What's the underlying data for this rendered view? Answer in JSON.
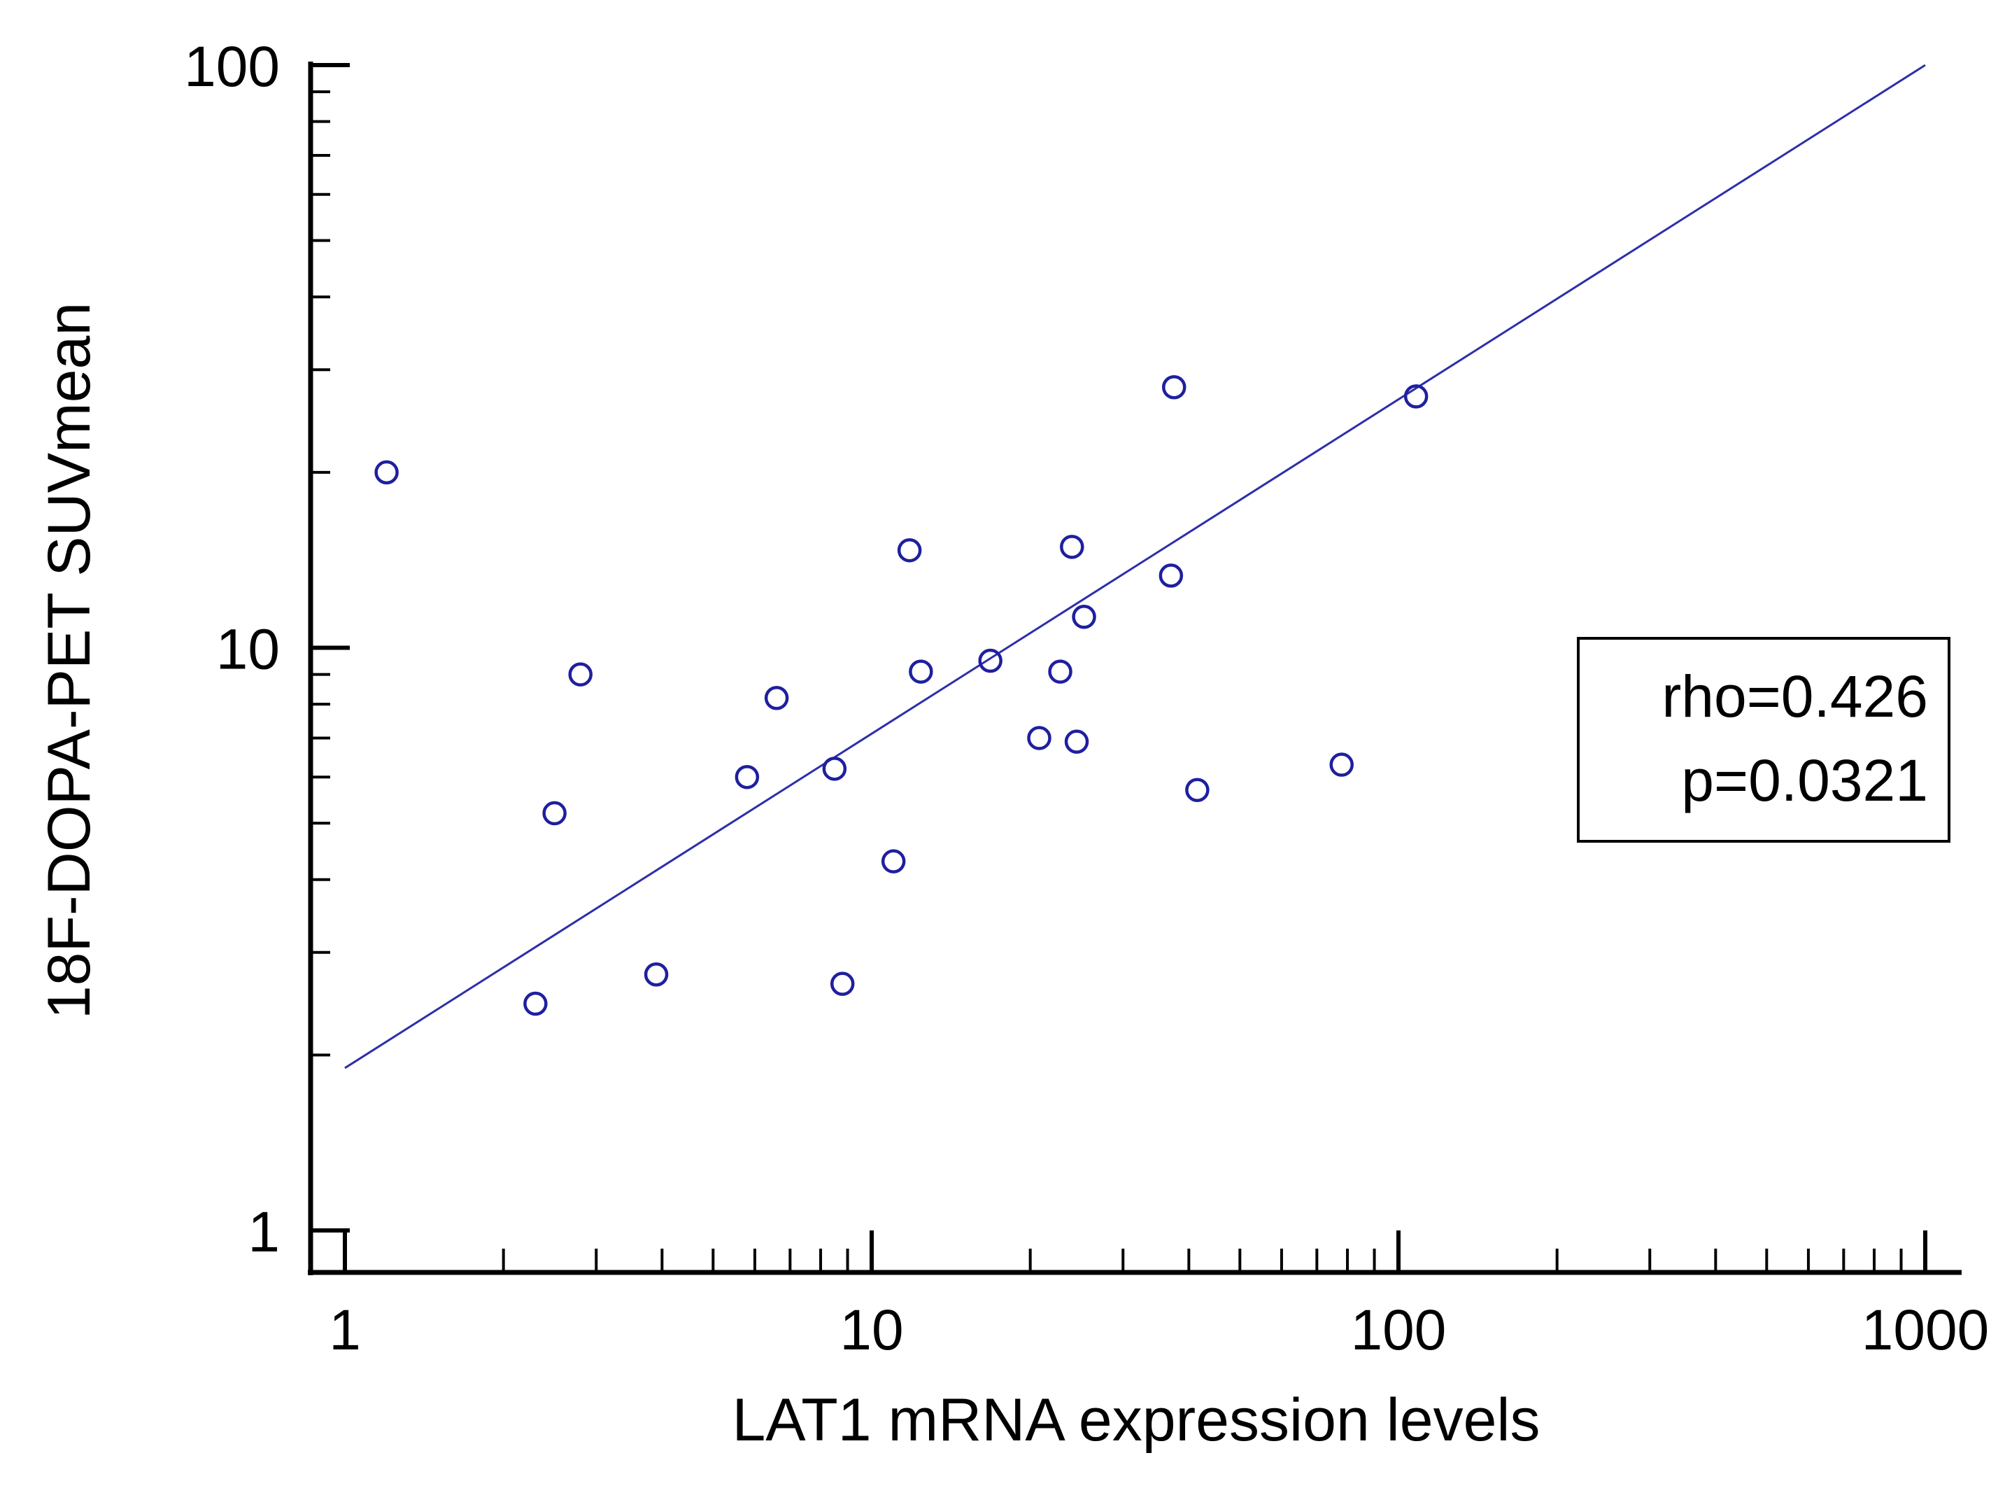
{
  "chart_data": {
    "type": "scatter",
    "xscale": "log",
    "yscale": "log",
    "xlim": [
      1,
      1000
    ],
    "ylim": [
      1,
      100
    ],
    "xlabel": "LAT1 mRNA expression levels",
    "ylabel": "18F-DOPA-PET SUVmean",
    "x_ticks": [
      1,
      10,
      100,
      1000
    ],
    "x_tick_labels": [
      "1",
      "10",
      "100",
      "1000"
    ],
    "y_ticks": [
      1,
      10,
      100
    ],
    "y_tick_labels": [
      "1",
      "10",
      "100"
    ],
    "annotation": {
      "line1": "rho=0.426",
      "line2": "p=0.0321"
    },
    "fit_line": {
      "x": [
        1,
        1000
      ],
      "y": [
        1.9,
        100
      ]
    },
    "marker": {
      "shape": "open-circle",
      "color": "#1f1f9f"
    },
    "line_color": "#2e2eaa",
    "points": [
      {
        "x": 1.2,
        "y": 20.0
      },
      {
        "x": 2.3,
        "y": 2.45
      },
      {
        "x": 2.5,
        "y": 5.2
      },
      {
        "x": 2.8,
        "y": 9.0
      },
      {
        "x": 3.9,
        "y": 2.75
      },
      {
        "x": 5.8,
        "y": 6.0
      },
      {
        "x": 6.6,
        "y": 8.2
      },
      {
        "x": 8.5,
        "y": 6.2
      },
      {
        "x": 8.8,
        "y": 2.65
      },
      {
        "x": 11.0,
        "y": 4.3
      },
      {
        "x": 11.8,
        "y": 14.7
      },
      {
        "x": 12.4,
        "y": 9.1
      },
      {
        "x": 16.8,
        "y": 9.5
      },
      {
        "x": 20.8,
        "y": 7.0
      },
      {
        "x": 22.8,
        "y": 9.1
      },
      {
        "x": 24.0,
        "y": 14.9
      },
      {
        "x": 24.5,
        "y": 6.9
      },
      {
        "x": 25.3,
        "y": 11.3
      },
      {
        "x": 37.0,
        "y": 13.3
      },
      {
        "x": 37.5,
        "y": 28.0
      },
      {
        "x": 41.5,
        "y": 5.7
      },
      {
        "x": 78.0,
        "y": 6.3
      },
      {
        "x": 108.0,
        "y": 27.0
      }
    ]
  }
}
